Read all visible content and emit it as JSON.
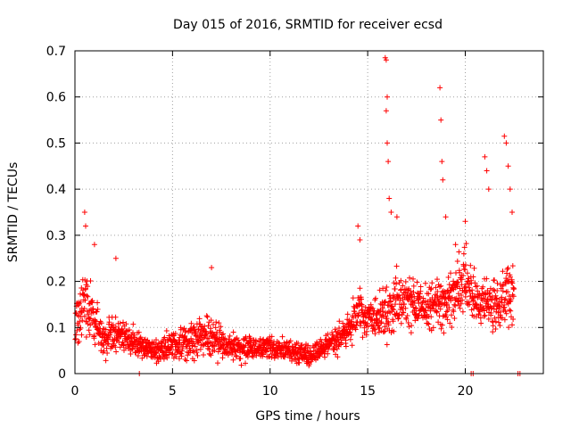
{
  "chart_data": {
    "type": "scatter",
    "title": "Day 015 of 2016, SRMTID for receiver ecsd",
    "xlabel": "GPS time / hours",
    "ylabel": "SRMTID / TECUs",
    "xlim": [
      0,
      24
    ],
    "ylim": [
      0,
      0.7
    ],
    "xticks": [
      0,
      5,
      10,
      15,
      20
    ],
    "yticks": [
      0,
      0.1,
      0.2,
      0.3,
      0.4,
      0.5,
      0.6,
      0.7
    ],
    "xtick_labels": [
      "0",
      "5",
      "10",
      "15",
      "20"
    ],
    "ytick_labels": [
      "0",
      "0.1",
      "0.2",
      "0.3",
      "0.4",
      "0.5",
      "0.6",
      "0.7"
    ],
    "grid": true,
    "marker": "+",
    "color": "#ff0000",
    "series": [
      {
        "name": "SRMTID",
        "profile_note": "approximate envelope of the plotted point cloud",
        "profile_x": [
          0.0,
          0.3,
          0.5,
          1.0,
          1.5,
          2.0,
          2.5,
          3.0,
          3.5,
          4.0,
          5.0,
          6.0,
          7.0,
          8.0,
          9.0,
          10.0,
          11.0,
          12.0,
          12.5,
          13.0,
          13.5,
          14.0,
          14.5,
          15.0,
          15.5,
          16.0,
          16.5,
          17.0,
          17.5,
          18.0,
          18.5,
          19.0,
          19.5,
          20.0,
          20.5,
          21.0,
          21.5,
          22.0,
          22.5
        ],
        "profile_mean": [
          0.11,
          0.13,
          0.16,
          0.12,
          0.07,
          0.09,
          0.08,
          0.07,
          0.06,
          0.05,
          0.06,
          0.07,
          0.08,
          0.06,
          0.05,
          0.06,
          0.05,
          0.04,
          0.05,
          0.06,
          0.08,
          0.09,
          0.14,
          0.12,
          0.12,
          0.13,
          0.16,
          0.16,
          0.15,
          0.14,
          0.15,
          0.15,
          0.19,
          0.2,
          0.16,
          0.15,
          0.15,
          0.17,
          0.18
        ],
        "profile_spread": [
          0.07,
          0.08,
          0.09,
          0.07,
          0.04,
          0.05,
          0.04,
          0.04,
          0.03,
          0.03,
          0.04,
          0.05,
          0.05,
          0.04,
          0.03,
          0.03,
          0.03,
          0.03,
          0.03,
          0.03,
          0.04,
          0.05,
          0.07,
          0.05,
          0.06,
          0.08,
          0.08,
          0.07,
          0.06,
          0.06,
          0.07,
          0.07,
          0.08,
          0.09,
          0.07,
          0.07,
          0.07,
          0.08,
          0.08
        ],
        "notable_points": [
          {
            "x": 0.5,
            "y": 0.35
          },
          {
            "x": 0.55,
            "y": 0.32
          },
          {
            "x": 1.0,
            "y": 0.28
          },
          {
            "x": 2.1,
            "y": 0.25
          },
          {
            "x": 7.0,
            "y": 0.23
          },
          {
            "x": 14.5,
            "y": 0.32
          },
          {
            "x": 14.6,
            "y": 0.29
          },
          {
            "x": 15.9,
            "y": 0.685
          },
          {
            "x": 15.95,
            "y": 0.68
          },
          {
            "x": 16.0,
            "y": 0.6
          },
          {
            "x": 15.95,
            "y": 0.57
          },
          {
            "x": 16.0,
            "y": 0.5
          },
          {
            "x": 16.05,
            "y": 0.46
          },
          {
            "x": 16.1,
            "y": 0.38
          },
          {
            "x": 16.2,
            "y": 0.35
          },
          {
            "x": 16.5,
            "y": 0.34
          },
          {
            "x": 18.7,
            "y": 0.62
          },
          {
            "x": 18.75,
            "y": 0.55
          },
          {
            "x": 18.8,
            "y": 0.46
          },
          {
            "x": 18.85,
            "y": 0.42
          },
          {
            "x": 19.0,
            "y": 0.34
          },
          {
            "x": 19.5,
            "y": 0.28
          },
          {
            "x": 20.0,
            "y": 0.33
          },
          {
            "x": 21.0,
            "y": 0.47
          },
          {
            "x": 21.1,
            "y": 0.44
          },
          {
            "x": 21.2,
            "y": 0.4
          },
          {
            "x": 22.0,
            "y": 0.515
          },
          {
            "x": 22.1,
            "y": 0.5
          },
          {
            "x": 22.2,
            "y": 0.45
          },
          {
            "x": 22.3,
            "y": 0.4
          },
          {
            "x": 22.4,
            "y": 0.35
          },
          {
            "x": 3.3,
            "y": 0.0
          },
          {
            "x": 20.3,
            "y": 0.0
          },
          {
            "x": 20.4,
            "y": 0.0
          },
          {
            "x": 22.7,
            "y": 0.0
          },
          {
            "x": 22.8,
            "y": 0.0
          }
        ]
      }
    ]
  }
}
